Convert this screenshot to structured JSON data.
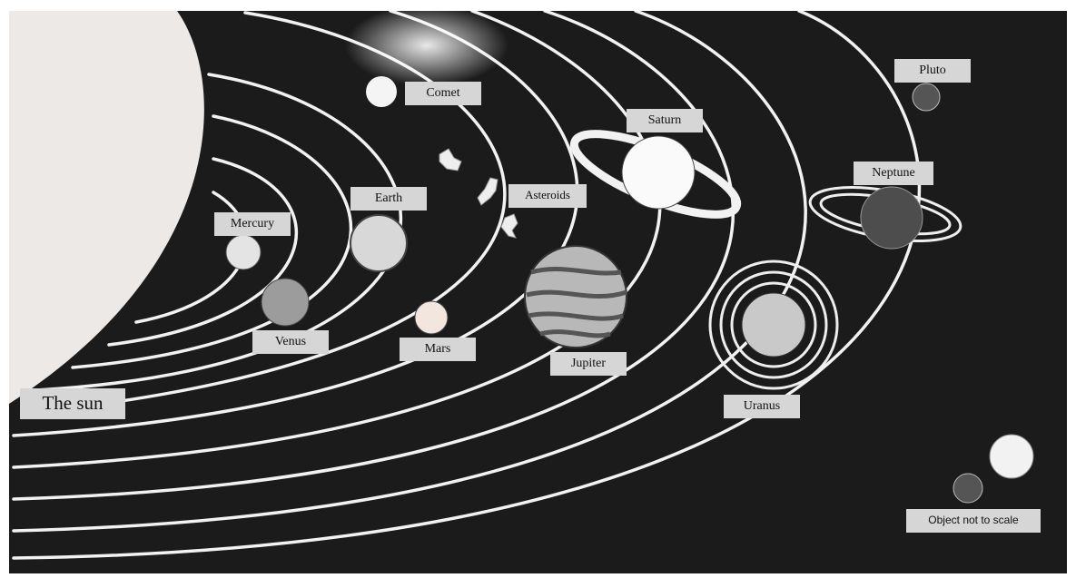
{
  "labels": {
    "sun": "The sun",
    "mercury": "Mercury",
    "venus": "Venus",
    "earth": "Earth",
    "mars": "Mars",
    "comet": "Comet",
    "asteroids": "Asteroids",
    "jupiter": "Jupiter",
    "saturn": "Saturn",
    "uranus": "Uranus",
    "neptune": "Neptune",
    "pluto": "Pluto"
  },
  "note": "Object not to scale"
}
